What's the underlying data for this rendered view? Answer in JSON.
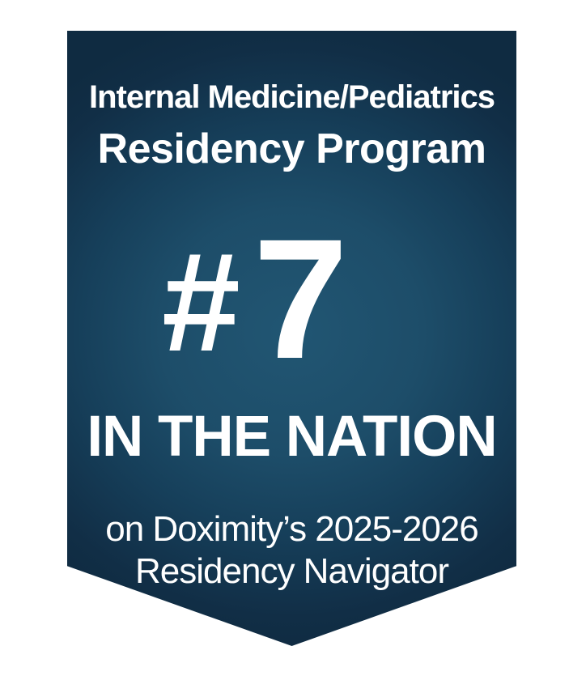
{
  "badge": {
    "program_line1": "Internal Medicine/Pediatrics",
    "program_line2": "Residency Program",
    "rank_symbol": "#",
    "rank_number": "7",
    "rank_context": "IN THE NATION",
    "source_line1": "on Doximity’s 2025-2026",
    "source_line2": "Residency Navigator",
    "colors": {
      "page_background": "#ffffff",
      "banner_edge": "#0f2b41",
      "banner_glow_center": "#215673",
      "text": "#ffffff"
    }
  }
}
